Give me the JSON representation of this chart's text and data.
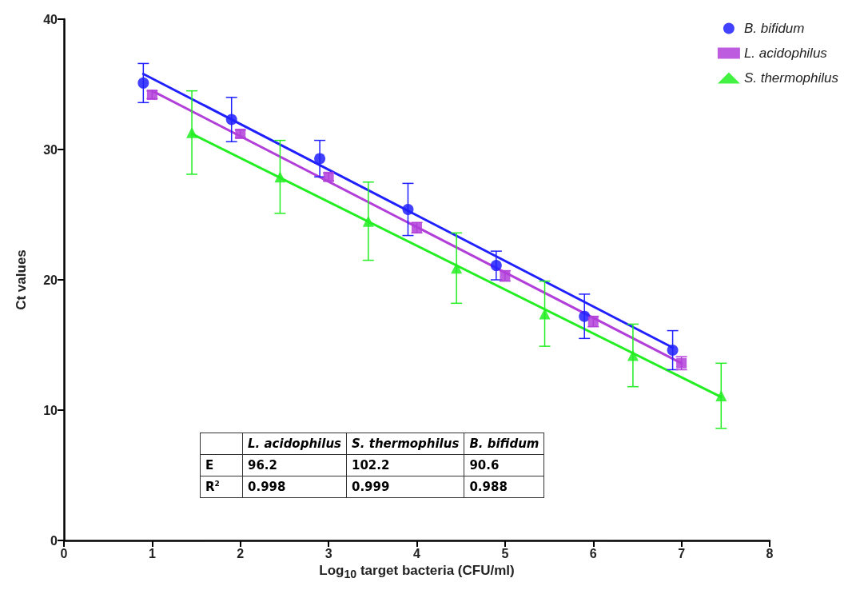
{
  "chart_data": {
    "type": "scatter",
    "xlabel": "Log$_{10}$ target bacteria (CFU/ml)",
    "ylabel": "Ct values",
    "xlim": [
      0,
      8
    ],
    "xticks": [
      0,
      1,
      2,
      3,
      4,
      5,
      6,
      7,
      8
    ],
    "ylim": [
      0,
      40
    ],
    "yticks": [
      0,
      10,
      20,
      30,
      40
    ],
    "grid": false,
    "legend": "top right",
    "series": [
      {
        "name": "B. bifidum",
        "marker": "circle",
        "color": "#2020ff",
        "x": [
          0.9,
          1.9,
          2.9,
          3.9,
          4.9,
          5.9,
          6.9
        ],
        "values": [
          35.1,
          32.3,
          29.3,
          25.4,
          21.1,
          17.2,
          14.6
        ],
        "errors": [
          1.5,
          1.7,
          1.4,
          2.0,
          1.1,
          1.7,
          1.5
        ]
      },
      {
        "name": "L. acidophilus",
        "marker": "square",
        "color": "#b23fd9",
        "x": [
          1.0,
          2.0,
          3.0,
          4.0,
          5.0,
          6.0,
          7.0
        ],
        "values": [
          34.2,
          31.2,
          27.9,
          24.0,
          20.3,
          16.8,
          13.6
        ],
        "errors": [
          0.3,
          0.3,
          0.3,
          0.4,
          0.4,
          0.4,
          0.5
        ]
      },
      {
        "name": "S. thermophilus",
        "marker": "triangle",
        "color": "#22ee22",
        "x": [
          1.45,
          2.45,
          3.45,
          4.45,
          5.45,
          6.45,
          7.45
        ],
        "values": [
          31.3,
          27.9,
          24.5,
          20.9,
          17.4,
          14.2,
          11.1
        ],
        "errors": [
          3.2,
          2.8,
          3.0,
          2.7,
          2.5,
          2.4,
          2.5
        ]
      },
      {
        "type": "line",
        "marker": "none",
        "color": "#2020ff",
        "x": [
          0.9,
          6.9
        ],
        "values": [
          35.8,
          14.8
        ]
      },
      {
        "type": "line",
        "marker": "none",
        "color": "#b23fd9",
        "x": [
          1.0,
          7.0
        ],
        "values": [
          34.5,
          13.6
        ]
      },
      {
        "type": "line",
        "marker": "none",
        "color": "#22ee22",
        "x": [
          1.45,
          7.45
        ],
        "values": [
          31.2,
          11.0
        ]
      }
    ],
    "annotations": [
      "L. acidophilus",
      "S. thermophilus",
      "B. bifidum",
      "E",
      "96.2",
      "102.2",
      "90.6",
      "R$^{2}$",
      "0.998",
      "0.999",
      "0.988"
    ]
  }
}
